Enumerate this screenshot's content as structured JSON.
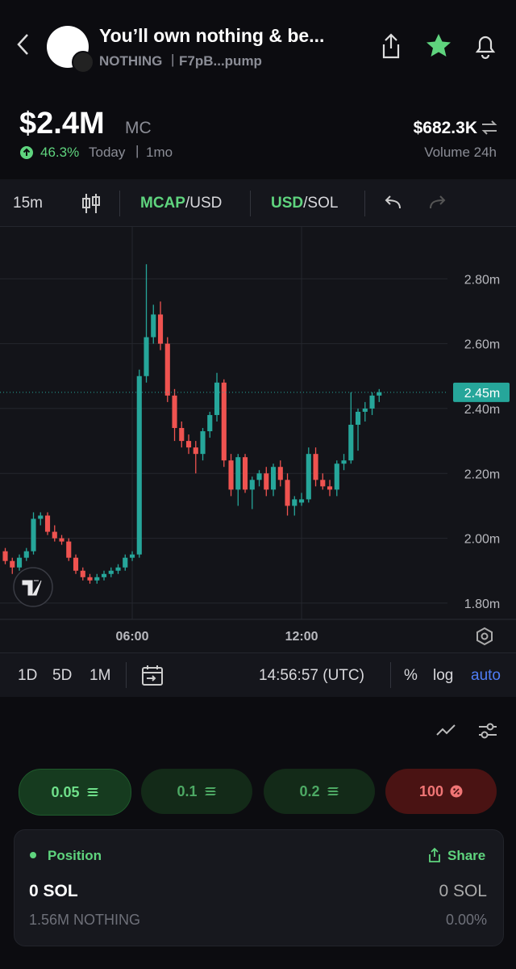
{
  "header": {
    "title": "You’ll own nothing & be...",
    "ticker": "NOTHING",
    "address": "F7pB...pump"
  },
  "stats": {
    "market_cap": "$2.4M",
    "mc_label": "MC",
    "change": "46.3%",
    "period": "Today",
    "age": "1mo",
    "volume": "$682.3K",
    "volume_label": "Volume 24h"
  },
  "toolbar": {
    "interval": "15m",
    "mcap": "MCAP",
    "mcap_quote": "/USD",
    "usd": "USD",
    "usd_quote": "/SOL"
  },
  "chart_data": {
    "type": "candlestick",
    "up_color": "#26a69a",
    "down_color": "#ef5350",
    "x": [
      1.5,
      1.75,
      2,
      2.25,
      2.5,
      2.75,
      3,
      3.25,
      3.5,
      3.75,
      4,
      4.25,
      4.5,
      4.75,
      5,
      5.25,
      5.5,
      5.75,
      6,
      6.25,
      6.5,
      6.75,
      7,
      7.25,
      7.5,
      7.75,
      8,
      8.25,
      8.5,
      8.75,
      9,
      9.25,
      9.5,
      9.75,
      10,
      10.25,
      10.5,
      10.75,
      11,
      11.25,
      11.5,
      11.75,
      12,
      12.25,
      12.5,
      12.75,
      13,
      13.25,
      13.5,
      13.75,
      14,
      14.25,
      14.5,
      14.75
    ],
    "open": [
      1.96,
      1.93,
      1.91,
      1.94,
      1.96,
      2.06,
      2.07,
      2.02,
      2.0,
      1.99,
      1.94,
      1.9,
      1.88,
      1.87,
      1.88,
      1.89,
      1.9,
      1.91,
      1.94,
      1.95,
      2.5,
      2.62,
      2.69,
      2.6,
      2.44,
      2.34,
      2.3,
      2.28,
      2.26,
      2.33,
      2.38,
      2.48,
      2.24,
      2.15,
      2.25,
      2.15,
      2.18,
      2.2,
      2.15,
      2.22,
      2.18,
      2.1,
      2.11,
      2.12,
      2.26,
      2.18,
      2.16,
      2.15,
      2.23,
      2.24,
      2.35,
      2.39,
      2.4,
      2.44
    ],
    "high": [
      1.97,
      1.94,
      1.95,
      1.97,
      2.08,
      2.08,
      2.08,
      2.04,
      2.01,
      2.0,
      1.95,
      1.91,
      1.89,
      1.89,
      1.9,
      1.91,
      1.92,
      1.95,
      1.96,
      2.52,
      2.845,
      2.72,
      2.73,
      2.62,
      2.46,
      2.36,
      2.32,
      2.3,
      2.34,
      2.39,
      2.51,
      2.49,
      2.26,
      2.26,
      2.26,
      2.19,
      2.21,
      2.22,
      2.23,
      2.24,
      2.2,
      2.13,
      2.14,
      2.28,
      2.28,
      2.2,
      2.18,
      2.24,
      2.26,
      2.45,
      2.4,
      2.42,
      2.45,
      2.46
    ],
    "low": [
      1.92,
      1.89,
      1.9,
      1.93,
      1.95,
      2.04,
      2.01,
      1.99,
      1.98,
      1.93,
      1.89,
      1.87,
      1.86,
      1.86,
      1.87,
      1.88,
      1.89,
      1.9,
      1.93,
      1.94,
      2.48,
      2.6,
      2.58,
      2.42,
      2.3,
      2.28,
      2.26,
      2.2,
      2.24,
      2.31,
      2.36,
      2.22,
      2.13,
      2.1,
      2.14,
      2.09,
      2.16,
      2.13,
      2.13,
      2.16,
      2.07,
      2.07,
      2.1,
      2.11,
      2.16,
      2.15,
      2.13,
      2.13,
      2.21,
      2.23,
      2.27,
      2.36,
      2.38,
      2.42
    ],
    "close": [
      1.93,
      1.91,
      1.94,
      1.96,
      2.06,
      2.07,
      2.02,
      2.0,
      1.99,
      1.94,
      1.9,
      1.88,
      1.87,
      1.88,
      1.89,
      1.9,
      1.91,
      1.94,
      1.95,
      2.5,
      2.62,
      2.69,
      2.6,
      2.44,
      2.34,
      2.3,
      2.28,
      2.26,
      2.33,
      2.38,
      2.48,
      2.24,
      2.15,
      2.25,
      2.15,
      2.18,
      2.2,
      2.15,
      2.22,
      2.18,
      2.1,
      2.12,
      2.12,
      2.26,
      2.18,
      2.16,
      2.15,
      2.23,
      2.24,
      2.35,
      2.39,
      2.4,
      2.44,
      2.45
    ],
    "xlim": [
      1.314,
      17.17
    ],
    "xticks": [
      {
        "value": 6,
        "label": "06:00"
      },
      {
        "value": 12,
        "label": "12:00"
      }
    ],
    "ylim": [
      1.75,
      2.96
    ],
    "yticks": [
      {
        "value": 1.8,
        "label": "1.80m"
      },
      {
        "value": 2.0,
        "label": "2.00m"
      },
      {
        "value": 2.2,
        "label": "2.20m"
      },
      {
        "value": 2.4,
        "label": "2.40m"
      },
      {
        "value": 2.6,
        "label": "2.60m"
      },
      {
        "value": 2.8,
        "label": "2.80m"
      }
    ],
    "last_value": 2.45,
    "last_label": "2.45m",
    "grid": true
  },
  "bottom_bar": {
    "range_1d": "1D",
    "range_5d": "5D",
    "range_1m": "1M",
    "time": "14:56:57 (UTC)",
    "percent": "%",
    "log": "log",
    "auto": "auto"
  },
  "buttons": [
    "0.05",
    "0.1",
    "0.2",
    "100"
  ],
  "position": {
    "title": "Position",
    "share": "Share",
    "sol_left": "0 SOL",
    "sol_right": "0 SOL",
    "tokens": "1.56M NOTHING",
    "percent": "0.00%"
  }
}
